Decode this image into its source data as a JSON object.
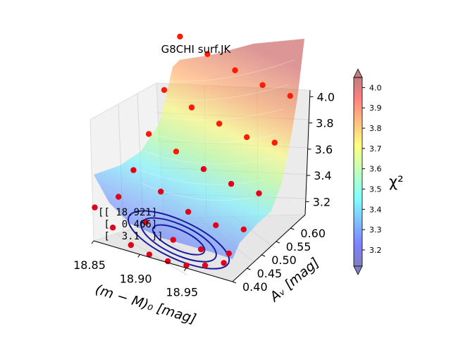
{
  "chart_data": {
    "type": "scatter",
    "subtype": "3d-surface-with-points",
    "title": "G8CHI surf.JK",
    "xlabel": "(m − M)₀ [mag]",
    "ylabel": "Aᵥ [mag]",
    "zlabel": "χ²",
    "x_ticks": [
      "18.85",
      "18.90",
      "18.95"
    ],
    "y_ticks": [
      "0.40",
      "0.45",
      "0.50",
      "0.55",
      "0.60"
    ],
    "z_ticks": [
      "3.2",
      "3.4",
      "3.6",
      "3.8",
      "4.0"
    ],
    "xlim": [
      18.85,
      19.0
    ],
    "ylim": [
      0.4,
      0.65
    ],
    "zlim": [
      3.1,
      4.05
    ],
    "colorbar": {
      "label": "χ²",
      "ticks": [
        "3.2",
        "3.3",
        "3.4",
        "3.5",
        "3.6",
        "3.7",
        "3.8",
        "3.9",
        "4.0"
      ],
      "range": [
        3.12,
        4.05
      ],
      "colormap": "jet",
      "alpha": 0.5
    },
    "best_fit": {
      "mu0": 18.921,
      "av": 0.466,
      "chi2": 3.1
    },
    "annotation_lines": [
      "[[ 18.921]",
      " [  0.466]",
      " [  3.1  ]]"
    ],
    "points": [
      {
        "x": 18.85,
        "y": 0.4,
        "z": 3.35
      },
      {
        "x": 18.87,
        "y": 0.4,
        "z": 3.24
      },
      {
        "x": 18.89,
        "y": 0.4,
        "z": 3.15
      },
      {
        "x": 18.91,
        "y": 0.4,
        "z": 3.12
      },
      {
        "x": 18.93,
        "y": 0.4,
        "z": 3.11
      },
      {
        "x": 18.95,
        "y": 0.4,
        "z": 3.12
      },
      {
        "x": 18.97,
        "y": 0.4,
        "z": 3.16
      },
      {
        "x": 18.99,
        "y": 0.4,
        "z": 3.22
      },
      {
        "x": 18.86,
        "y": 0.45,
        "z": 3.35
      },
      {
        "x": 18.89,
        "y": 0.45,
        "z": 3.22
      },
      {
        "x": 18.92,
        "y": 0.45,
        "z": 3.15
      },
      {
        "x": 18.95,
        "y": 0.45,
        "z": 3.14
      },
      {
        "x": 18.98,
        "y": 0.45,
        "z": 3.17
      },
      {
        "x": 18.86,
        "y": 0.5,
        "z": 3.45
      },
      {
        "x": 18.89,
        "y": 0.5,
        "z": 3.35
      },
      {
        "x": 18.92,
        "y": 0.5,
        "z": 3.26
      },
      {
        "x": 18.95,
        "y": 0.5,
        "z": 3.22
      },
      {
        "x": 18.98,
        "y": 0.5,
        "z": 3.25
      },
      {
        "x": 18.86,
        "y": 0.55,
        "z": 3.62
      },
      {
        "x": 18.89,
        "y": 0.55,
        "z": 3.55
      },
      {
        "x": 18.92,
        "y": 0.55,
        "z": 3.48
      },
      {
        "x": 18.95,
        "y": 0.55,
        "z": 3.43
      },
      {
        "x": 18.98,
        "y": 0.55,
        "z": 3.42
      },
      {
        "x": 18.86,
        "y": 0.6,
        "z": 3.85
      },
      {
        "x": 18.89,
        "y": 0.6,
        "z": 3.78
      },
      {
        "x": 18.92,
        "y": 0.6,
        "z": 3.72
      },
      {
        "x": 18.95,
        "y": 0.6,
        "z": 3.68
      },
      {
        "x": 18.98,
        "y": 0.6,
        "z": 3.7
      },
      {
        "x": 18.86,
        "y": 0.65,
        "z": 4.15
      },
      {
        "x": 18.89,
        "y": 0.65,
        "z": 4.08
      },
      {
        "x": 18.92,
        "y": 0.65,
        "z": 4.02
      },
      {
        "x": 18.95,
        "y": 0.65,
        "z": 3.97
      },
      {
        "x": 18.98,
        "y": 0.65,
        "z": 3.95
      }
    ],
    "contour_levels": [
      3.13,
      3.16,
      3.2
    ]
  }
}
